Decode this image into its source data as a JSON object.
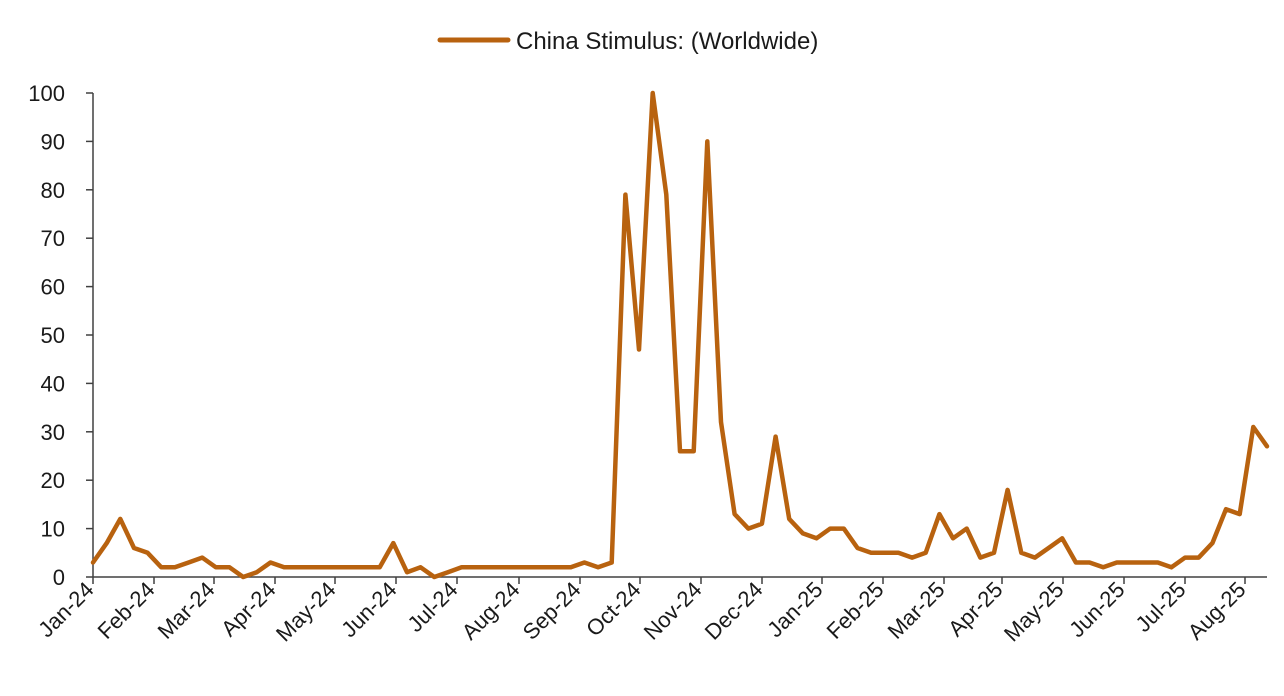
{
  "chart_data": {
    "type": "line",
    "title": "",
    "xlabel": "",
    "ylabel": "",
    "ylim": [
      0,
      100
    ],
    "yticks": [
      0,
      10,
      20,
      30,
      40,
      50,
      60,
      70,
      80,
      90,
      100
    ],
    "grid": false,
    "legend_position": "top-center",
    "x_tick_labels": [
      "Jan-24",
      "Feb-24",
      "Mar-24",
      "Apr-24",
      "May-24",
      "Jun-24",
      "Jul-24",
      "Aug-24",
      "Sep-24",
      "Oct-24",
      "Nov-24",
      "Dec-24",
      "Jan-25",
      "Feb-25",
      "Mar-25",
      "Apr-25",
      "May-25",
      "Jun-25",
      "Jul-25",
      "Aug-25"
    ],
    "series": [
      {
        "name": "China Stimulus: (Worldwide)",
        "color": "#B8620F",
        "values": [
          3,
          7,
          12,
          6,
          5,
          2,
          2,
          3,
          4,
          2,
          2,
          0,
          1,
          3,
          2,
          2,
          2,
          2,
          2,
          2,
          2,
          2,
          7,
          1,
          2,
          0,
          1,
          2,
          2,
          2,
          2,
          2,
          2,
          2,
          2,
          2,
          3,
          2,
          3,
          79,
          47,
          100,
          79,
          26,
          26,
          90,
          32,
          13,
          10,
          11,
          29,
          12,
          9,
          8,
          10,
          10,
          6,
          5,
          5,
          5,
          4,
          5,
          13,
          8,
          10,
          4,
          5,
          18,
          5,
          4,
          6,
          8,
          3,
          3,
          2,
          3,
          3,
          3,
          3,
          2,
          4,
          4,
          7,
          14,
          13,
          31,
          27
        ]
      }
    ]
  }
}
